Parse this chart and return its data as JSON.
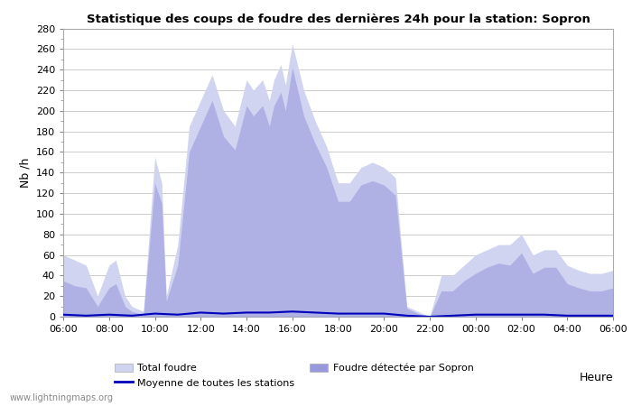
{
  "title": "Statistique des coups de foudre des dernières 24h pour la station: Sopron",
  "xlabel": "Heure",
  "ylabel": "Nb /h",
  "ylim": [
    0,
    280
  ],
  "yticks": [
    0,
    20,
    40,
    60,
    80,
    100,
    120,
    140,
    160,
    180,
    200,
    220,
    240,
    260,
    280
  ],
  "x_labels": [
    "06:00",
    "08:00",
    "10:00",
    "12:00",
    "14:00",
    "16:00",
    "18:00",
    "20:00",
    "22:00",
    "00:00",
    "02:00",
    "04:00",
    "06:00"
  ],
  "x_ticks_hours": [
    6,
    8,
    10,
    12,
    14,
    16,
    18,
    20,
    22,
    24,
    26,
    28,
    30
  ],
  "watermark": "www.lightningmaps.org",
  "color_total": "#d0d4f0",
  "color_sopron": "#9999dd",
  "color_moyenne": "#0000bb",
  "total_foudre_hours": [
    6.0,
    6.5,
    7.0,
    7.5,
    8.0,
    8.3,
    8.7,
    9.0,
    9.5,
    10.0,
    10.3,
    10.5,
    11.0,
    11.5,
    12.0,
    12.5,
    13.0,
    13.5,
    14.0,
    14.3,
    14.7,
    15.0,
    15.2,
    15.5,
    15.7,
    16.0,
    16.5,
    17.0,
    17.5,
    18.0,
    18.5,
    19.0,
    19.5,
    20.0,
    20.5,
    21.0,
    21.5,
    22.0,
    22.5,
    23.0,
    23.5,
    24.0,
    24.5,
    25.0,
    25.5,
    26.0,
    26.5,
    27.0,
    27.5,
    28.0,
    28.5,
    29.0,
    29.5,
    30.0
  ],
  "total_foudre_vals": [
    60,
    55,
    50,
    20,
    50,
    55,
    20,
    10,
    5,
    155,
    130,
    20,
    70,
    185,
    210,
    235,
    200,
    185,
    230,
    220,
    230,
    210,
    230,
    245,
    225,
    265,
    220,
    190,
    165,
    130,
    130,
    145,
    150,
    145,
    135,
    10,
    5,
    0,
    40,
    40,
    50,
    60,
    65,
    70,
    70,
    80,
    60,
    65,
    65,
    50,
    45,
    42,
    42,
    45
  ],
  "sopron_foudre_hours": [
    6.0,
    6.5,
    7.0,
    7.5,
    8.0,
    8.3,
    8.7,
    9.0,
    9.5,
    10.0,
    10.3,
    10.5,
    11.0,
    11.5,
    12.0,
    12.5,
    13.0,
    13.5,
    14.0,
    14.3,
    14.7,
    15.0,
    15.2,
    15.5,
    15.7,
    16.0,
    16.5,
    17.0,
    17.5,
    18.0,
    18.5,
    19.0,
    19.5,
    20.0,
    20.5,
    21.0,
    21.5,
    22.0,
    22.5,
    23.0,
    23.5,
    24.0,
    24.5,
    25.0,
    25.5,
    26.0,
    26.5,
    27.0,
    27.5,
    28.0,
    28.5,
    29.0,
    29.5,
    30.0
  ],
  "sopron_foudre_vals": [
    35,
    30,
    28,
    10,
    28,
    32,
    10,
    5,
    2,
    130,
    110,
    15,
    50,
    160,
    185,
    210,
    175,
    162,
    205,
    195,
    205,
    185,
    205,
    218,
    200,
    242,
    195,
    168,
    145,
    112,
    112,
    128,
    132,
    128,
    118,
    8,
    3,
    0,
    25,
    25,
    35,
    42,
    48,
    52,
    50,
    62,
    42,
    48,
    48,
    32,
    28,
    25,
    25,
    28
  ],
  "moyenne_hours": [
    6.0,
    7.0,
    8.0,
    9.0,
    10.0,
    11.0,
    12.0,
    13.0,
    14.0,
    15.0,
    16.0,
    17.0,
    18.0,
    19.0,
    20.0,
    21.0,
    22.0,
    23.0,
    24.0,
    25.0,
    26.0,
    27.0,
    28.0,
    29.0,
    30.0
  ],
  "moyenne_vals": [
    2,
    1,
    2,
    1,
    3,
    2,
    4,
    3,
    4,
    4,
    5,
    4,
    3,
    3,
    3,
    1,
    0,
    1,
    2,
    2,
    2,
    2,
    1,
    1,
    1
  ]
}
